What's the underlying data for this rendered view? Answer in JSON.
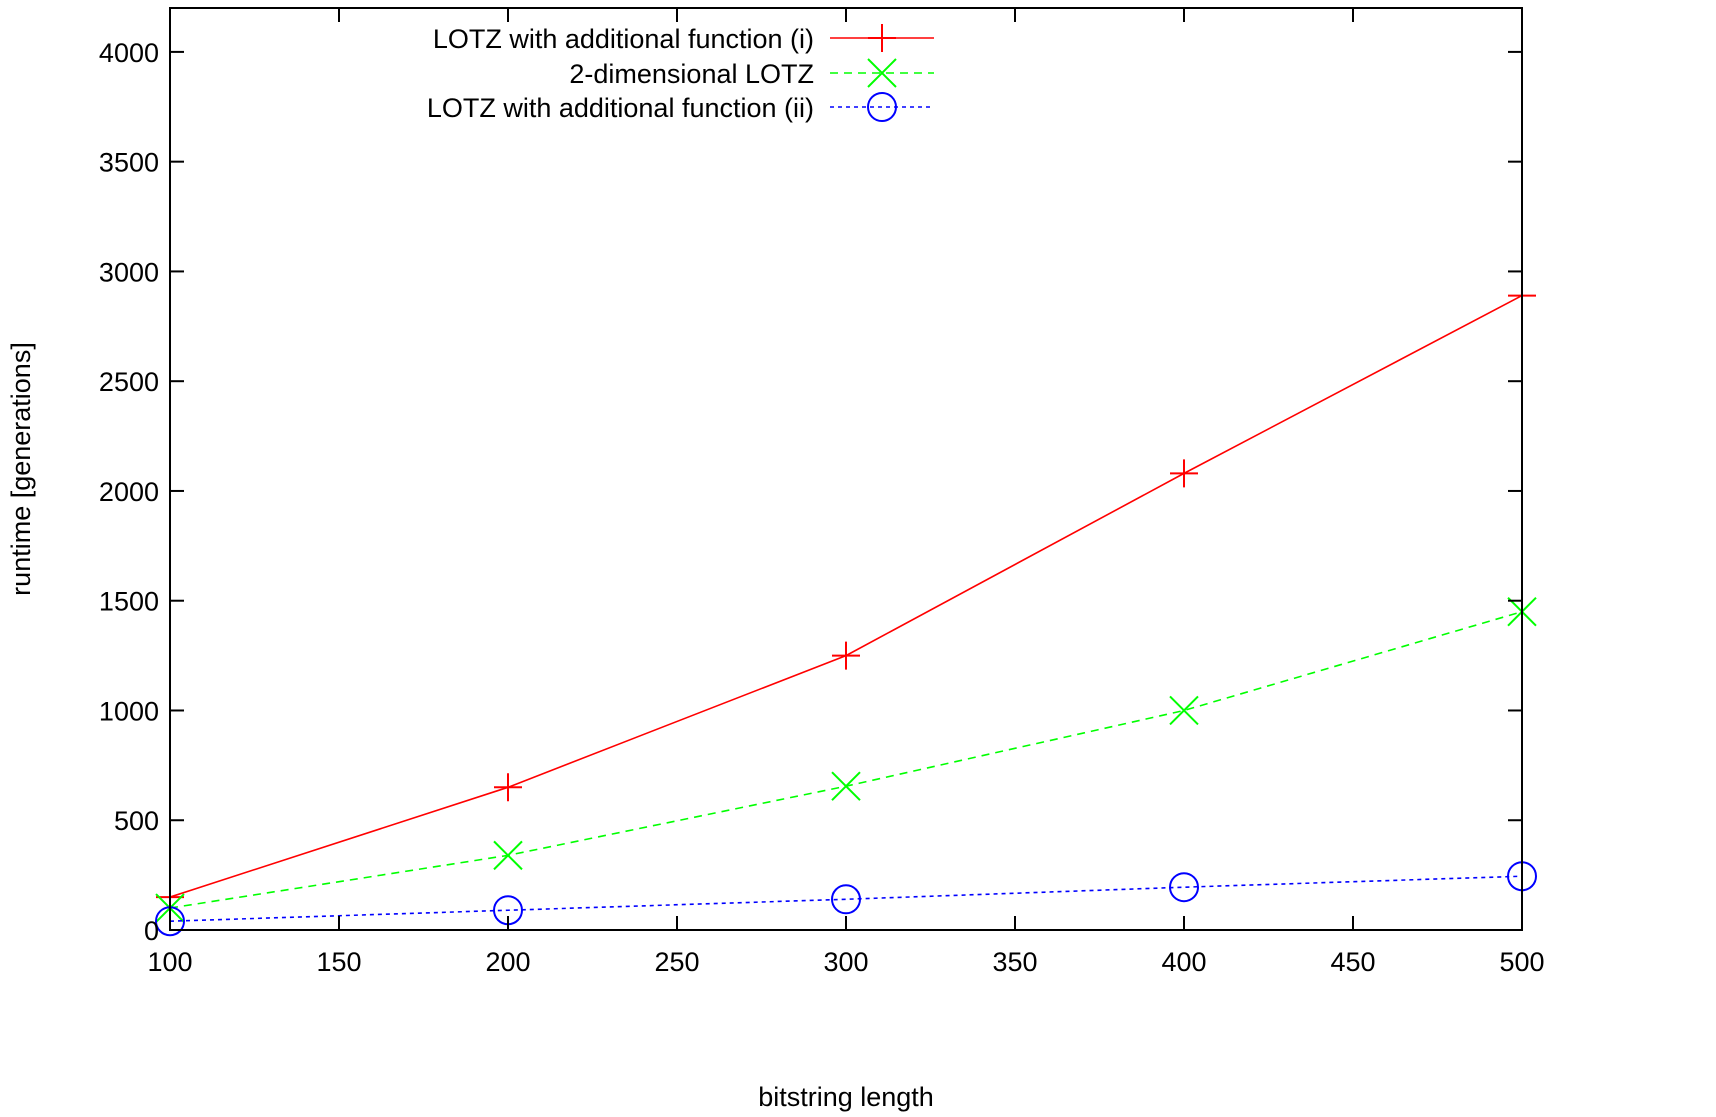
{
  "chart_data": {
    "type": "line",
    "title": "",
    "xlabel": "bitstring length",
    "ylabel": "runtime [generations]",
    "xlim": [
      100,
      500
    ],
    "ylim": [
      0,
      4200
    ],
    "x_ticks": [
      100,
      150,
      200,
      250,
      300,
      350,
      400,
      450,
      500
    ],
    "y_ticks": [
      0,
      500,
      1000,
      1500,
      2000,
      2500,
      3000,
      3500,
      4000
    ],
    "grid": false,
    "legend_position": "top-center",
    "series": [
      {
        "name": "LOTZ with additional function (i)",
        "x": [
          100,
          200,
          300,
          400,
          500
        ],
        "y": [
          150,
          650,
          1250,
          2080,
          2890
        ],
        "color": "#ff0000",
        "marker": "plus",
        "dash": "solid"
      },
      {
        "name": "2-dimensional LOTZ",
        "x": [
          100,
          200,
          300,
          400,
          500
        ],
        "y": [
          100,
          340,
          655,
          1000,
          1450
        ],
        "color": "#00ff00",
        "marker": "cross",
        "dash": "dashed"
      },
      {
        "name": "LOTZ with additional function (ii)",
        "x": [
          100,
          200,
          300,
          400,
          500
        ],
        "y": [
          40,
          90,
          140,
          195,
          245
        ],
        "color": "#0000ff",
        "marker": "circle",
        "dash": "dotted"
      }
    ]
  }
}
